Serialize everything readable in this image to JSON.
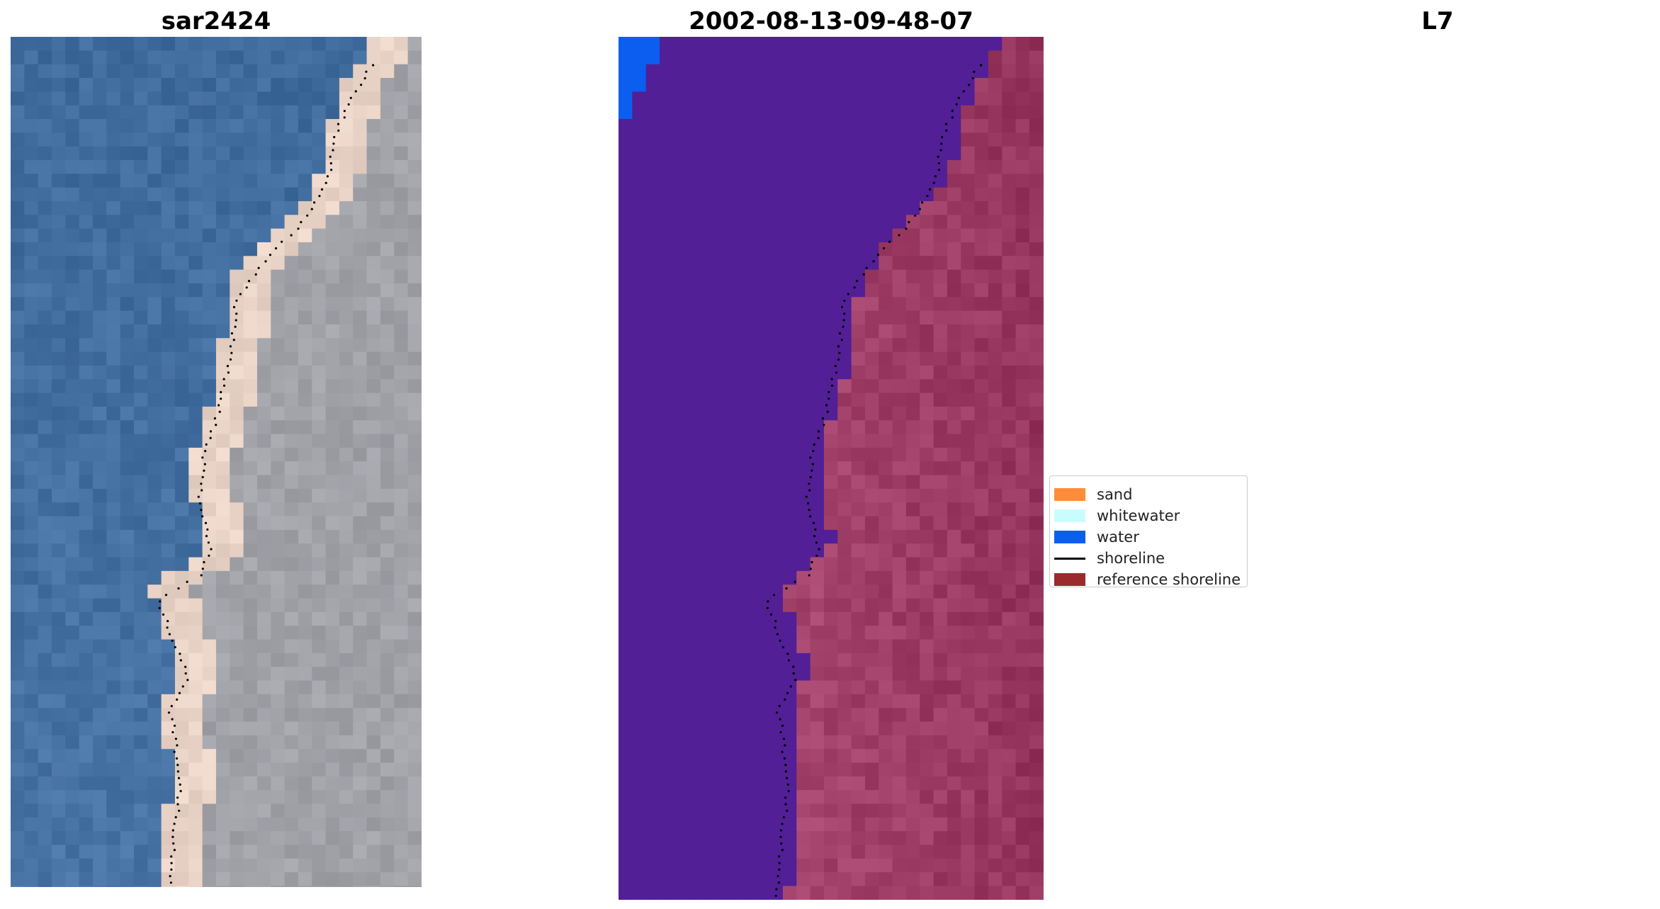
{
  "panels": [
    {
      "title": "sar2424",
      "kind": "rgb-image"
    },
    {
      "title": "2002-08-13-09-48-07",
      "kind": "classified-image"
    },
    {
      "title": "L7",
      "kind": "false-color-image"
    }
  ],
  "legend": {
    "items": [
      {
        "label": "sand",
        "color": "#ff8c3a",
        "type": "patch"
      },
      {
        "label": "whitewater",
        "color": "#c9fdfd",
        "type": "patch"
      },
      {
        "label": "water",
        "color": "#0b5ef0",
        "type": "patch"
      },
      {
        "label": "shoreline",
        "color": "#000000",
        "type": "line"
      },
      {
        "label": "reference shoreline",
        "color": "#9b2a2e",
        "type": "patch"
      }
    ]
  },
  "colors": {
    "sea_rgb": "#3f6a9c",
    "land_rgb": "#a9aab0",
    "beach_rgb": "#e9d3c6",
    "classified_water": "#521f96",
    "classified_land": "#b2527a",
    "classified_border": "#c06491",
    "false_color_water": "#7419b0",
    "false_color_land": "#c50f46",
    "water_class": "#0b5ef0"
  }
}
